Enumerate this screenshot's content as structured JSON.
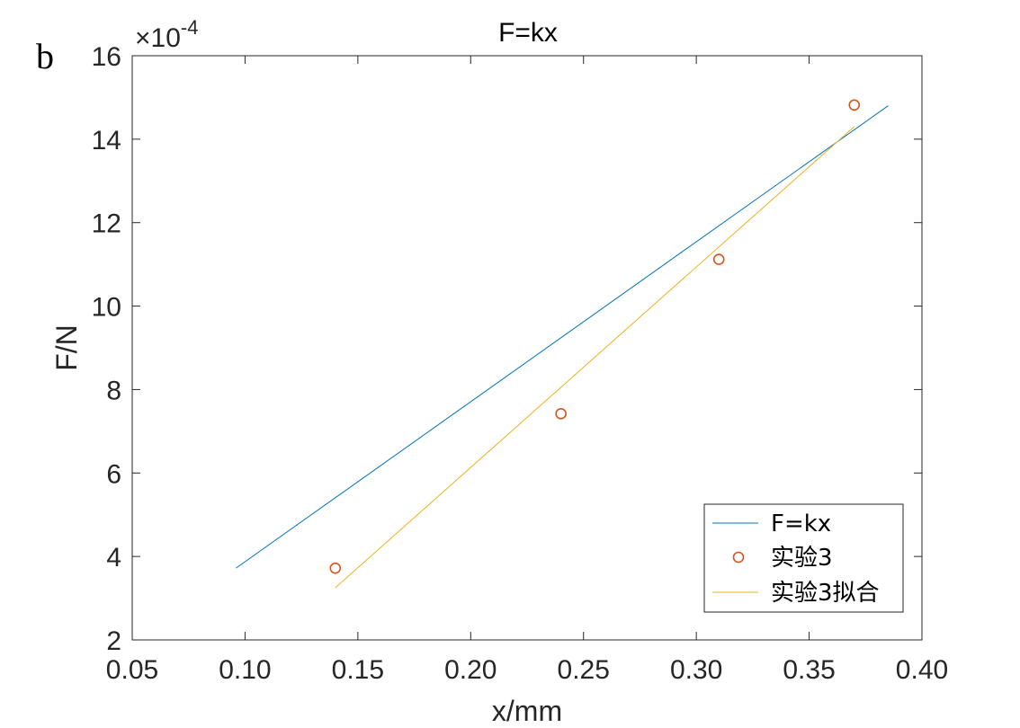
{
  "panel_label": "b",
  "chart_data": {
    "type": "scatter",
    "title": "F=kx",
    "xlabel": "x/mm",
    "ylabel": "F/N",
    "y_exponent": {
      "base": "×10",
      "power": "-4"
    },
    "xlim": [
      0.05,
      0.4
    ],
    "ylim": [
      2,
      16
    ],
    "x_ticks": [
      0.05,
      0.1,
      0.15,
      0.2,
      0.25,
      0.3,
      0.35,
      0.4
    ],
    "x_tick_labels": [
      "0.05",
      "0.10",
      "0.15",
      "0.20",
      "0.25",
      "0.30",
      "0.35",
      "0.40"
    ],
    "y_ticks": [
      2,
      4,
      6,
      8,
      10,
      12,
      14,
      16
    ],
    "y_tick_labels": [
      "2",
      "4",
      "6",
      "8",
      "10",
      "12",
      "14",
      "16"
    ],
    "grid": false,
    "legend_position": "bottom-right",
    "series": [
      {
        "name": "F=kx",
        "kind": "line",
        "color": "#0072BD",
        "x": [
          0.096,
          0.385
        ],
        "y": [
          3.72,
          14.8
        ]
      },
      {
        "name": "实验3",
        "kind": "marker",
        "color": "#D95319",
        "x": [
          0.14,
          0.24,
          0.31,
          0.37
        ],
        "y": [
          3.72,
          7.42,
          11.12,
          14.82
        ]
      },
      {
        "name": "实验3拟合",
        "kind": "line",
        "color": "#EDB120",
        "x": [
          0.14,
          0.37
        ],
        "y": [
          3.25,
          14.3
        ]
      }
    ]
  }
}
